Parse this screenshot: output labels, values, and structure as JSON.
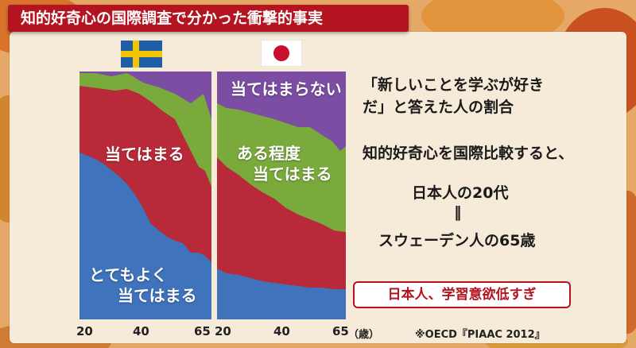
{
  "title": "知的好奇心の国際調査で分かった衝撃的事実",
  "chart_data": [
    {
      "type": "area",
      "country": "Sweden",
      "x": [
        20,
        65
      ],
      "series": [
        {
          "name": "とてもよく当てはまる",
          "color": "#3f73bb"
        },
        {
          "name": "当てはまる",
          "color": "#b82a39"
        },
        {
          "name": "当てはまらない",
          "color": "#7b4ea3"
        }
      ]
    },
    {
      "type": "area",
      "country": "Japan",
      "x": [
        20,
        65
      ],
      "series": [
        {
          "name": "とてもよく当てはまる",
          "color": "#3f73bb"
        },
        {
          "name": "当てはまる",
          "color": "#b82a39"
        },
        {
          "name": "ある程度当てはまる",
          "color": "#7aaa3c"
        },
        {
          "name": "当てはまらない",
          "color": "#7b4ea3"
        }
      ]
    }
  ],
  "labels": {
    "sweden_mid": "当てはまる",
    "sweden_bottom_1": "とてもよく",
    "sweden_bottom_2": "当てはまる",
    "japan_top": "当てはまらない",
    "japan_mid_1": "ある程度",
    "japan_mid_2": "当てはまる"
  },
  "axis": {
    "sweden_ticks": [
      "20",
      "40",
      "65"
    ],
    "japan_ticks": [
      "20",
      "40",
      "65"
    ],
    "unit": "（歳）"
  },
  "source": "※OECD『PIAAC 2012』",
  "right_text": {
    "line1": "「新しいことを学ぶが好き",
    "line2": "だ」と答えた人の割合",
    "line3": "知的好奇心を国際比較すると、",
    "line4": "日本人の20代",
    "line5": "‖",
    "line6": "スウェーデン人の65歳"
  },
  "callout": "日本人、学習意欲低すぎ",
  "colors": {
    "title_bg": "#b3141f",
    "blue": "#3f73bb",
    "red": "#b82a39",
    "green": "#7aaa3c",
    "purple": "#7b4ea3"
  }
}
